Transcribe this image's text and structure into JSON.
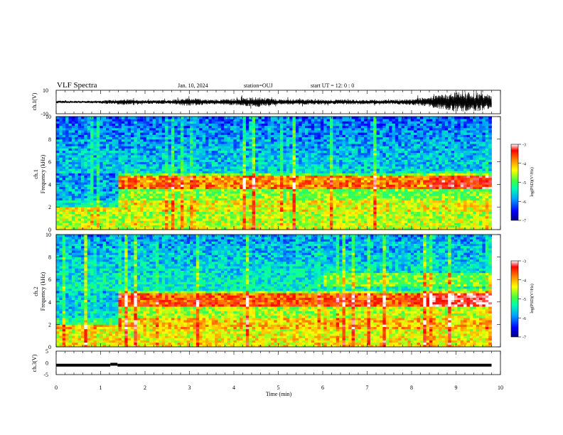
{
  "header": {
    "title": "VLF Spectra",
    "date": "Jan. 10, 2024",
    "station": "station=OUJ",
    "start_ut": "start UT =  12: 0  : 0"
  },
  "colors": {
    "colorbar_stops": [
      "#000080",
      "#0000ff",
      "#00a0ff",
      "#00ffb0",
      "#40ff40",
      "#ffff00",
      "#ff8000",
      "#ff0000",
      "#ffffff"
    ],
    "waveform": "#000000",
    "grid": "#000000"
  },
  "chart_data": [
    {
      "type": "line",
      "panel": "ch1-waveform",
      "ylabel": "ch.1(V)",
      "ylim": [
        -10,
        10
      ],
      "y_ticks": [
        "10",
        "-10"
      ],
      "xlim": [
        0,
        10
      ],
      "x": [
        0,
        0.5,
        1.0,
        1.5,
        2.0,
        2.5,
        3.0,
        3.5,
        4.0,
        4.5,
        5.0,
        5.5,
        6.0,
        6.5,
        7.0,
        7.5,
        8.0,
        8.5,
        9.0,
        9.5,
        9.8
      ],
      "amplitude": [
        1.2,
        1.0,
        1.3,
        2.5,
        1.5,
        1.8,
        3.5,
        2.0,
        2.8,
        4.5,
        2.2,
        2.5,
        2.0,
        2.2,
        2.0,
        2.0,
        2.5,
        5.0,
        8.5,
        8.0,
        6.0
      ]
    },
    {
      "type": "heatmap",
      "panel": "ch1-spectrogram",
      "ylabel": "ch.1",
      "ylabel2": "Frequency (kHz)",
      "ylim": [
        0,
        10
      ],
      "xlim": [
        0,
        9.8
      ],
      "y_ticks": [
        "0",
        "2",
        "4",
        "6",
        "8",
        "10"
      ],
      "colorbar": {
        "label": "log(PSD)(V²/Hz)",
        "range": [
          -7,
          -3
        ],
        "ticks": [
          "-3",
          "-4",
          "-5",
          "-6",
          "-7"
        ]
      }
    },
    {
      "type": "heatmap",
      "panel": "ch2-spectrogram",
      "ylabel": "ch.2",
      "ylabel2": "Frequency (kHz)",
      "ylim": [
        0,
        10
      ],
      "xlim": [
        0,
        9.8
      ],
      "y_ticks": [
        "0",
        "2",
        "4",
        "6",
        "8",
        "10"
      ],
      "colorbar": {
        "label": "log(PSD)(V²/Hz)",
        "range": [
          -7,
          -3
        ],
        "ticks": [
          "-3",
          "-4",
          "-5",
          "-6",
          "-7"
        ]
      }
    },
    {
      "type": "line",
      "panel": "ch3-waveform",
      "ylabel": "ch.3(V)",
      "ylim": [
        -5,
        5
      ],
      "y_ticks": [
        "5",
        "0",
        "-5"
      ],
      "xlim": [
        0,
        10
      ],
      "segments": [
        {
          "x": [
            0,
            1.22
          ],
          "y": [
            -1,
            -1
          ]
        },
        {
          "x": [
            1.22,
            1.38
          ],
          "y": [
            -0.6,
            -0.6
          ]
        },
        {
          "x": [
            1.38,
            9.8
          ],
          "y": [
            -1,
            -1
          ]
        }
      ]
    }
  ],
  "x_axis": {
    "label": "Time (min)",
    "ticks": [
      "0",
      "1",
      "2",
      "3",
      "4",
      "5",
      "6",
      "7",
      "8",
      "9",
      "10"
    ]
  }
}
